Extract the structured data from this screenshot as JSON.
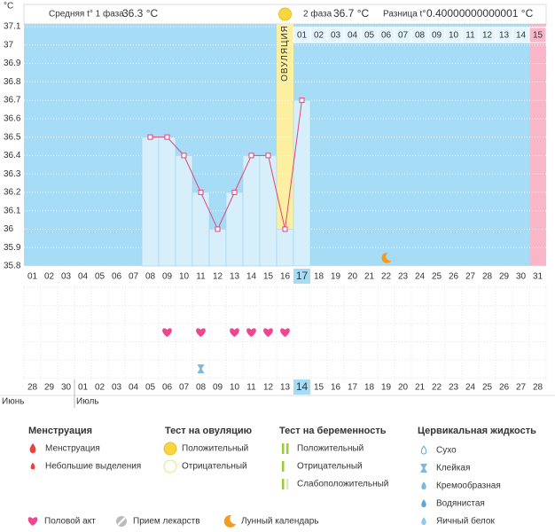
{
  "chart_data": {
    "type": "line",
    "y_label": "°C",
    "categories": [
      "01",
      "02",
      "03",
      "04",
      "05",
      "06",
      "07",
      "08",
      "09",
      "10",
      "11",
      "12",
      "13",
      "14",
      "15",
      "16",
      "17",
      "18",
      "19",
      "20",
      "21",
      "22",
      "23",
      "24",
      "25",
      "26",
      "27",
      "28",
      "29",
      "30",
      "31"
    ],
    "series": [
      {
        "color": "#e0457b",
        "values": [
          null,
          null,
          null,
          null,
          null,
          null,
          null,
          36.5,
          36.5,
          36.4,
          36.2,
          36,
          36.2,
          36.4,
          36.4,
          36,
          36.7,
          null,
          null,
          null,
          null,
          null,
          null,
          null,
          null,
          null,
          null,
          null,
          null,
          null,
          null
        ]
      }
    ],
    "ylim": [
      35.8,
      37.1
    ],
    "yticks": [
      37.1,
      37,
      36.9,
      36.8,
      36.7,
      36.6,
      36.5,
      36.4,
      36.3,
      36.2,
      36.1,
      36,
      35.9,
      35.8
    ],
    "grid": true,
    "ovulation_label": "ОВУЛЯЦИЯ",
    "ovulation_category": "16",
    "today_category": "17",
    "next_period_category": "31",
    "phase2_days": [
      "01",
      "02",
      "03",
      "04",
      "05",
      "06",
      "07",
      "08",
      "09",
      "10",
      "11",
      "12",
      "13",
      "14",
      "15"
    ],
    "dates": [
      "28",
      "29",
      "30",
      "01",
      "02",
      "03",
      "04",
      "05",
      "06",
      "07",
      "08",
      "09",
      "10",
      "11",
      "12",
      "13",
      "14",
      "15",
      "16",
      "17",
      "18",
      "19",
      "20",
      "21",
      "22",
      "23",
      "24",
      "25",
      "26",
      "27",
      "28"
    ],
    "weekend": [
      false,
      false,
      false,
      false,
      true,
      true,
      false,
      false,
      false,
      false,
      false,
      true,
      true,
      false,
      false,
      false,
      false,
      false,
      true,
      true,
      false,
      false,
      false,
      false,
      false,
      true,
      true,
      false,
      false,
      false,
      false
    ],
    "months": [
      "Июнь",
      "Июль"
    ],
    "events": {
      "intercourse": [
        "09",
        "11",
        "13",
        "14",
        "15",
        "16"
      ],
      "cervical_sticky": [
        "11"
      ],
      "moon": [
        "22"
      ]
    },
    "colors": {
      "background": "#a6dcf6",
      "ovulation": "#fcef9f",
      "period": "#f9b6c9",
      "bar": "#d6effb"
    }
  },
  "header": {
    "phase1_label": "Средняя t° 1 фаза",
    "phase1_value": "36.3 °C",
    "phase2_label": "2 фаза",
    "phase2_value": "36.7 °C",
    "diff_label": "Разница t°",
    "diff_value": "0.40000000000001 °C"
  },
  "legend": {
    "menstruation": {
      "title": "Менструация",
      "items": [
        "Менструация",
        "Небольшие выделения"
      ]
    },
    "ovulation_test": {
      "title": "Тест на овуляцию",
      "items": [
        "Положительный",
        "Отрицательный"
      ]
    },
    "pregnancy_test": {
      "title": "Тест на беременность",
      "items": [
        "Положительный",
        "Отрицательный",
        "Слабоположительный"
      ]
    },
    "cervical_fluid": {
      "title": "Цервикальная жидкость",
      "items": [
        "Сухо",
        "Клейкая",
        "Кремообразная",
        "Водянистая",
        "Яичный белок"
      ]
    },
    "other": [
      "Половой акт",
      "Прием лекарств",
      "Лунный календарь"
    ]
  }
}
